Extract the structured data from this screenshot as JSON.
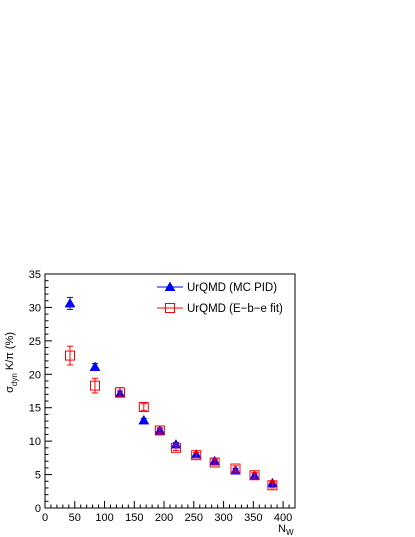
{
  "chart_data": {
    "type": "scatter",
    "xlabel": "N",
    "xlabel_sub": "W",
    "ylabel_sigma": "σ",
    "ylabel_sub": "dyn",
    "ylabel_rest": " K/π (%)",
    "xlim": [
      0,
      420
    ],
    "ylim": [
      0,
      35
    ],
    "x_ticks": [
      0,
      50,
      100,
      150,
      200,
      250,
      300,
      350,
      400
    ],
    "y_ticks": [
      0,
      5,
      10,
      15,
      20,
      25,
      30,
      35
    ],
    "legend_position": "top-right",
    "series": [
      {
        "name": "UrQMD (MC PID)",
        "marker": "filled-triangle",
        "color": "#0000ff",
        "points": [
          {
            "x": 42,
            "y": 30.6,
            "err": 0.9
          },
          {
            "x": 84,
            "y": 21.1,
            "err": 0.5
          },
          {
            "x": 126,
            "y": 17.1,
            "err": 0.4
          },
          {
            "x": 166,
            "y": 13.1,
            "err": 0.3
          },
          {
            "x": 193,
            "y": 11.6,
            "err": 0.3
          },
          {
            "x": 220,
            "y": 9.5,
            "err": 0.3
          },
          {
            "x": 254,
            "y": 8.0,
            "err": 0.3
          },
          {
            "x": 285,
            "y": 7.0,
            "err": 0.3
          },
          {
            "x": 320,
            "y": 5.6,
            "err": 0.3
          },
          {
            "x": 352,
            "y": 4.8,
            "err": 0.3
          },
          {
            "x": 382,
            "y": 3.7,
            "err": 0.3
          }
        ]
      },
      {
        "name": "UrQMD (E−b−e fit)",
        "marker": "open-square",
        "color": "#ff0000",
        "points": [
          {
            "x": 42,
            "y": 22.8,
            "err": 1.4
          },
          {
            "x": 84,
            "y": 18.3,
            "err": 1.1
          },
          {
            "x": 126,
            "y": 17.3,
            "err": 0.7
          },
          {
            "x": 166,
            "y": 15.1,
            "err": 0.5
          },
          {
            "x": 193,
            "y": 11.6,
            "err": 0.4
          },
          {
            "x": 220,
            "y": 9.0,
            "err": 0.4
          },
          {
            "x": 254,
            "y": 7.9,
            "err": 0.4
          },
          {
            "x": 285,
            "y": 6.8,
            "err": 0.4
          },
          {
            "x": 320,
            "y": 5.9,
            "err": 0.4
          },
          {
            "x": 352,
            "y": 4.9,
            "err": 0.4
          },
          {
            "x": 382,
            "y": 3.4,
            "err": 0.4
          }
        ]
      }
    ]
  }
}
